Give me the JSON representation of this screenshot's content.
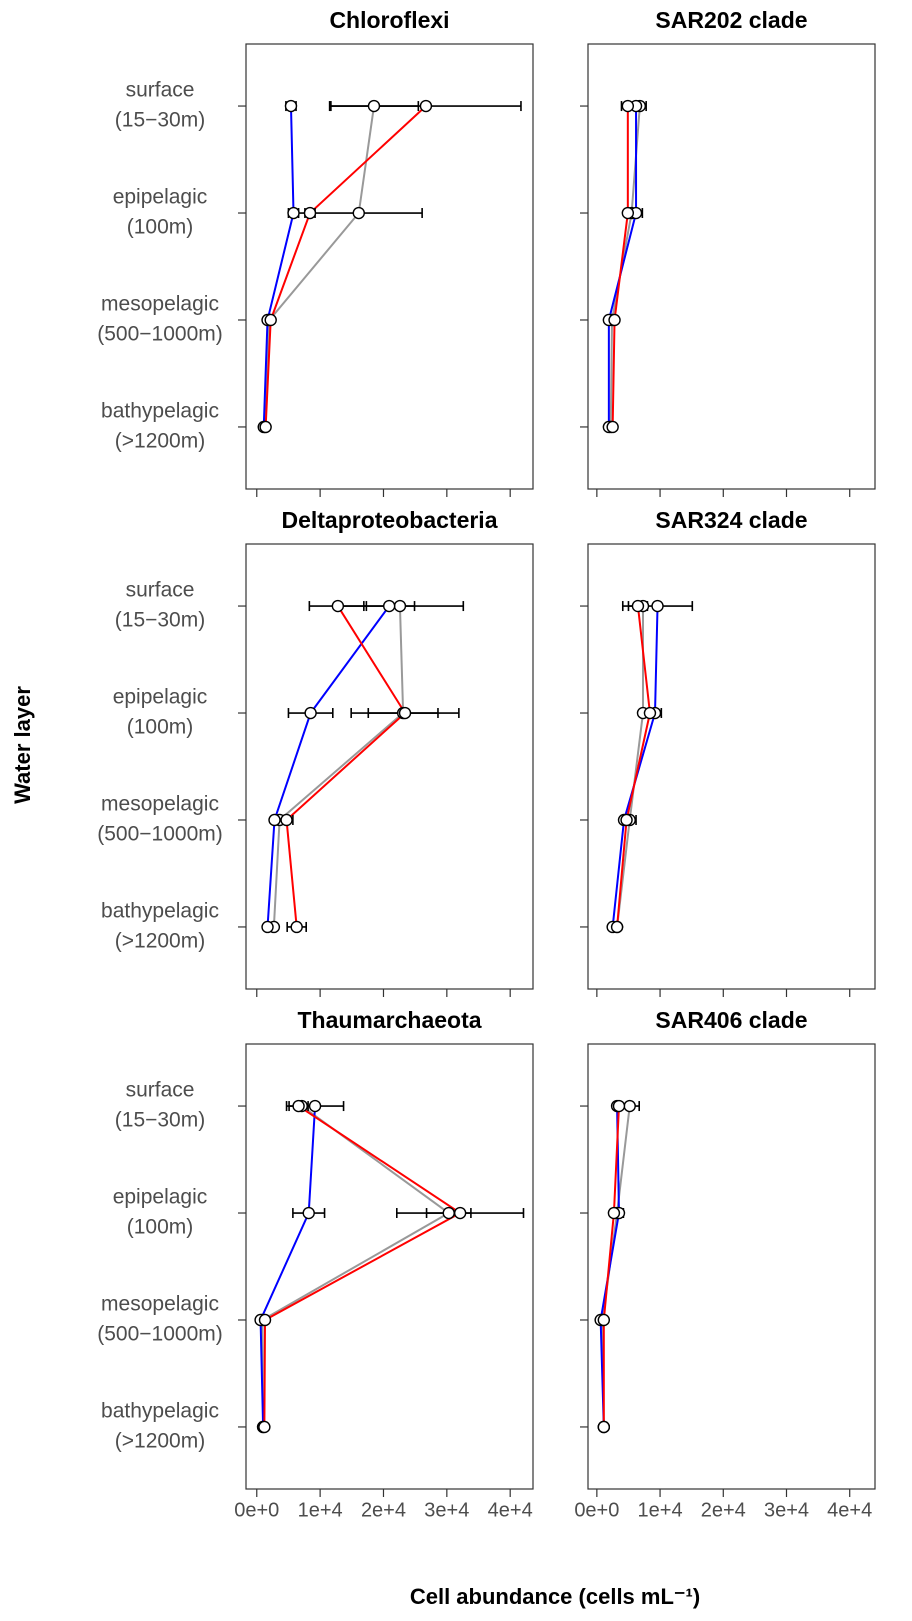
{
  "axis_titles": {
    "y": "Water layer",
    "x": "Cell abundance (cells mL⁻¹)"
  },
  "chart_data": [
    {
      "type": "line",
      "title": "Chloroflexi",
      "categories": [
        [
          "surface",
          "(15−30m)"
        ],
        [
          "epipelagic",
          "(100m)"
        ],
        [
          "mesopelagic",
          "(500−1000m)"
        ],
        [
          "bathypelagic",
          "(>1200m)"
        ]
      ],
      "xlim": [
        -1700,
        43600
      ],
      "xticks": [
        0,
        10000,
        20000,
        30000,
        40000
      ],
      "series": [
        {
          "color": "#999999",
          "values": [
            18500,
            16100,
            2000,
            1300
          ],
          "errors": [
            7000,
            10000,
            null,
            null
          ]
        },
        {
          "color": "#0000ff",
          "values": [
            5400,
            5800,
            1700,
            1100
          ],
          "errors": [
            800,
            800,
            null,
            null
          ]
        },
        {
          "color": "#ff0000",
          "values": [
            26700,
            8400,
            2200,
            1400
          ],
          "errors": [
            15000,
            800,
            null,
            null
          ]
        }
      ]
    },
    {
      "type": "line",
      "title": "SAR202 clade",
      "xlim": [
        -1400,
        44000
      ],
      "xticks": [
        0,
        10000,
        20000,
        30000,
        40000
      ],
      "series": [
        {
          "color": "#999999",
          "values": [
            6800,
            5500,
            2400,
            2200
          ],
          "errors": [
            1000,
            null,
            null,
            null
          ]
        },
        {
          "color": "#0000ff",
          "values": [
            6200,
            6200,
            1900,
            1900
          ],
          "errors": [
            null,
            1000,
            null,
            null
          ]
        },
        {
          "color": "#ff0000",
          "values": [
            4900,
            4900,
            2800,
            2500
          ],
          "errors": [
            1000,
            null,
            null,
            null
          ]
        }
      ]
    },
    {
      "type": "line",
      "title": "Deltaproteobacteria",
      "categories": [
        [
          "surface",
          "(15−30m)"
        ],
        [
          "epipelagic",
          "(100m)"
        ],
        [
          "mesopelagic",
          "(500−1000m)"
        ],
        [
          "bathypelagic",
          "(>1200m)"
        ]
      ],
      "xlim": [
        -1700,
        43600
      ],
      "xticks": [
        0,
        10000,
        20000,
        30000,
        40000
      ],
      "series": [
        {
          "color": "#999999",
          "values": [
            22600,
            23100,
            3600,
            2700
          ],
          "errors": [
            10000,
            5500,
            null,
            null
          ]
        },
        {
          "color": "#0000ff",
          "values": [
            20900,
            8500,
            2800,
            1700
          ],
          "errors": [
            4000,
            3500,
            null,
            null
          ]
        },
        {
          "color": "#ff0000",
          "values": [
            12800,
            23400,
            4700,
            6300
          ],
          "errors": [
            4500,
            8500,
            1000,
            1500
          ]
        }
      ]
    },
    {
      "type": "line",
      "title": "SAR324 clade",
      "xlim": [
        -1400,
        44000
      ],
      "xticks": [
        0,
        10000,
        20000,
        30000,
        40000
      ],
      "series": [
        {
          "color": "#999999",
          "values": [
            7300,
            7300,
            5200,
            3200
          ],
          "errors": [
            null,
            null,
            1000,
            null
          ]
        },
        {
          "color": "#0000ff",
          "values": [
            9600,
            9200,
            4300,
            2500
          ],
          "errors": [
            5500,
            1000,
            null,
            null
          ]
        },
        {
          "color": "#ff0000",
          "values": [
            6500,
            8400,
            4700,
            3200
          ],
          "errors": [
            1500,
            null,
            null,
            null
          ]
        }
      ]
    },
    {
      "type": "line",
      "title": "Thaumarchaeota",
      "categories": [
        [
          "surface",
          "(15−30m)"
        ],
        [
          "epipelagic",
          "(100m)"
        ],
        [
          "mesopelagic",
          "(500−1000m)"
        ],
        [
          "bathypelagic",
          "(>1200m)"
        ]
      ],
      "xlim": [
        -1700,
        43600
      ],
      "xticks": [
        {
          "value": 0,
          "label": "0e+0"
        },
        {
          "value": 10000,
          "label": "1e+4"
        },
        {
          "value": 20000,
          "label": "2e+4"
        },
        {
          "value": 30000,
          "label": "3e+4"
        },
        {
          "value": 40000,
          "label": "4e+4"
        }
      ],
      "series": [
        {
          "color": "#999999",
          "values": [
            7100,
            30300,
            900,
            1000
          ],
          "errors": [
            null,
            3500,
            null,
            null
          ]
        },
        {
          "color": "#0000ff",
          "values": [
            9200,
            8200,
            600,
            1000
          ],
          "errors": [
            4500,
            2500,
            null,
            null
          ]
        },
        {
          "color": "#ff0000",
          "values": [
            6600,
            32100,
            1300,
            1200
          ],
          "errors": [
            1500,
            10000,
            null,
            null
          ]
        }
      ]
    },
    {
      "type": "line",
      "title": "SAR406 clade",
      "xlim": [
        -1400,
        44000
      ],
      "xticks": [
        {
          "value": 0,
          "label": "0e+0"
        },
        {
          "value": 10000,
          "label": "1e+4"
        },
        {
          "value": 20000,
          "label": "2e+4"
        },
        {
          "value": 30000,
          "label": "3e+4"
        },
        {
          "value": 40000,
          "label": "4e+4"
        }
      ],
      "series": [
        {
          "color": "#999999",
          "values": [
            5200,
            3200,
            900,
            1100
          ],
          "errors": [
            1500,
            1000,
            null,
            null
          ]
        },
        {
          "color": "#0000ff",
          "values": [
            3200,
            3500,
            600,
            1100
          ],
          "errors": [
            null,
            null,
            null,
            null
          ]
        },
        {
          "color": "#ff0000",
          "values": [
            3500,
            2700,
            1100,
            1100
          ],
          "errors": [
            null,
            null,
            null,
            null
          ]
        }
      ]
    }
  ]
}
